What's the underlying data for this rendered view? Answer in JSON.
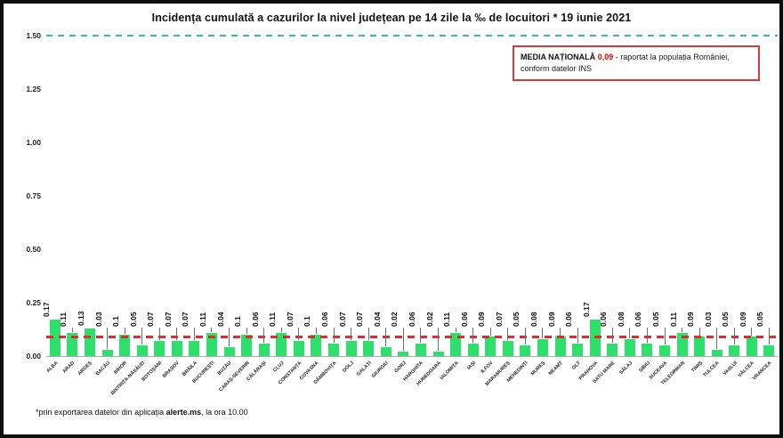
{
  "title": "Incidența cumulată a cazurilor la nivel județean pe 14 zile la ‰ de locuitori *  19 iunie 2021",
  "annotation": {
    "label": "MEDIA NAȚIONALĂ",
    "value": "0,09",
    "text_after": "- raportat la populația României, conform datelor INS"
  },
  "footer": {
    "prefix": "*prin exportarea datelor din aplicația ",
    "bold": "alerte.ms",
    "suffix": ", la ora 10.00"
  },
  "colors": {
    "bar": "#2edf6c",
    "national_avg_line": "#df2b2b",
    "top_dashed_line": "#35bd92",
    "annotation_border": "#cf3d3d",
    "annotation_value_text": "#e00000"
  },
  "chart_data": {
    "type": "bar",
    "title": "Incidența cumulată a cazurilor la nivel județean pe 14 zile la ‰ de locuitori * 19 iunie 2021",
    "xlabel": "",
    "ylabel": "",
    "ylim": [
      0,
      1.5
    ],
    "grid": false,
    "legend_position": "none",
    "national_average": 0.09,
    "upper_reference_line": 1.5,
    "y_ticks": [
      "1.50",
      "1.25",
      "1.00",
      "0.75",
      "0.50",
      "0.25",
      "0.00"
    ],
    "categories": [
      "ALBA",
      "ARAD",
      "ARGEȘ",
      "BACĂU",
      "BIHOR",
      "BISTRIȚA-NĂSĂUD",
      "BOTOȘANI",
      "BRAȘOV",
      "BRĂILA",
      "BUCUREȘTI",
      "BUZĂU",
      "CARAȘ-SEVERIN",
      "CĂLĂRAȘI",
      "CLUJ",
      "CONSTANȚA",
      "COVASNA",
      "DÂMBOVIȚA",
      "DOLJ",
      "GALAȚI",
      "GIURGIU",
      "GORJ",
      "HARGHITA",
      "HUNEDOARA",
      "IALOMIȚA",
      "IAȘI",
      "ILFOV",
      "MARAMUREȘ",
      "MEHEDINȚI",
      "MUREȘ",
      "NEAMȚ",
      "OLT",
      "PRAHOVA",
      "SATU MARE",
      "SĂLAJ",
      "SIBIU",
      "SUCEAVA",
      "TELEORMAN",
      "TIMIȘ",
      "TULCEA",
      "VASLUI",
      "VÂLCEA",
      "VRANCEA"
    ],
    "values": [
      0.17,
      0.11,
      0.13,
      0.03,
      0.1,
      0.05,
      0.07,
      0.07,
      0.07,
      0.11,
      0.04,
      0.1,
      0.06,
      0.11,
      0.07,
      0.1,
      0.06,
      0.07,
      0.07,
      0.04,
      0.02,
      0.06,
      0.02,
      0.11,
      0.06,
      0.09,
      0.07,
      0.05,
      0.08,
      0.09,
      0.06,
      0.17,
      0.06,
      0.08,
      0.06,
      0.05,
      0.11,
      0.09,
      0.03,
      0.05,
      0.09,
      0.05
    ]
  }
}
